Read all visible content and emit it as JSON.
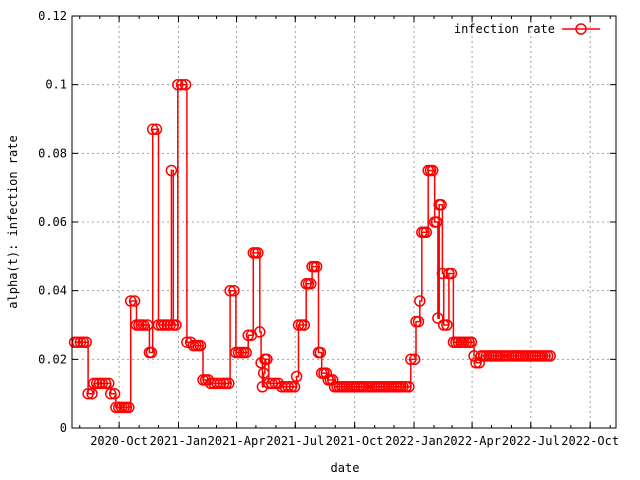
{
  "chart_data": {
    "type": "line",
    "title": "",
    "xlabel": "date",
    "ylabel": "alpha(t): infection rate",
    "ylim": [
      0,
      0.12
    ],
    "xlim": [
      "2020-07-20",
      "2022-11-10"
    ],
    "grid": true,
    "legend_position": "top-right",
    "x_ticks": [
      {
        "label": "2020-Oct",
        "date": "2020-10-01"
      },
      {
        "label": "2021-Jan",
        "date": "2021-01-01"
      },
      {
        "label": "2021-Apr",
        "date": "2021-04-01"
      },
      {
        "label": "2021-Jul",
        "date": "2021-07-01"
      },
      {
        "label": "2021-Oct",
        "date": "2021-10-01"
      },
      {
        "label": "2022-Jan",
        "date": "2022-01-01"
      },
      {
        "label": "2022-Apr",
        "date": "2022-04-01"
      },
      {
        "label": "2022-Jul",
        "date": "2022-07-01"
      },
      {
        "label": "2022-Oct",
        "date": "2022-10-01"
      }
    ],
    "y_ticks": [
      {
        "label": "0",
        "value": 0
      },
      {
        "label": "0.02",
        "value": 0.02
      },
      {
        "label": "0.04",
        "value": 0.04
      },
      {
        "label": "0.06",
        "value": 0.06
      },
      {
        "label": "0.08",
        "value": 0.08
      },
      {
        "label": "0.1",
        "value": 0.1
      },
      {
        "label": "0.12",
        "value": 0.12
      }
    ],
    "series": [
      {
        "name": "infection rate",
        "color": "#ff0000",
        "marker": "circle",
        "points": [
          [
            "2020-07-24",
            0.025
          ],
          [
            "2020-08-02",
            0.025
          ],
          [
            "2020-08-11",
            0.025
          ],
          [
            "2020-08-14",
            0.01
          ],
          [
            "2020-08-20",
            0.01
          ],
          [
            "2020-08-23",
            0.013
          ],
          [
            "2020-09-05",
            0.013
          ],
          [
            "2020-09-15",
            0.013
          ],
          [
            "2020-09-18",
            0.01
          ],
          [
            "2020-09-24",
            0.01
          ],
          [
            "2020-09-26",
            0.006
          ],
          [
            "2020-10-05",
            0.006
          ],
          [
            "2020-10-16",
            0.006
          ],
          [
            "2020-10-19",
            0.037
          ],
          [
            "2020-10-25",
            0.037
          ],
          [
            "2020-10-28",
            0.03
          ],
          [
            "2020-11-08",
            0.03
          ],
          [
            "2020-11-14",
            0.03
          ],
          [
            "2020-11-17",
            0.022
          ],
          [
            "2020-11-20",
            0.022
          ],
          [
            "2020-11-22",
            0.087
          ],
          [
            "2020-11-28",
            0.087
          ],
          [
            "2020-12-01",
            0.03
          ],
          [
            "2020-12-10",
            0.03
          ],
          [
            "2020-12-19",
            0.03
          ],
          [
            "2020-12-21",
            0.075
          ],
          [
            "2020-12-24",
            0.03
          ],
          [
            "2020-12-28",
            0.03
          ],
          [
            "2020-12-31",
            0.1
          ],
          [
            "2021-01-06",
            0.1
          ],
          [
            "2021-01-12",
            0.1
          ],
          [
            "2021-01-14",
            0.025
          ],
          [
            "2021-01-20",
            0.025
          ],
          [
            "2021-01-24",
            0.024
          ],
          [
            "2021-02-04",
            0.024
          ],
          [
            "2021-02-08",
            0.014
          ],
          [
            "2021-02-16",
            0.014
          ],
          [
            "2021-02-20",
            0.013
          ],
          [
            "2021-03-02",
            0.013
          ],
          [
            "2021-03-12",
            0.013
          ],
          [
            "2021-03-20",
            0.013
          ],
          [
            "2021-03-22",
            0.04
          ],
          [
            "2021-03-28",
            0.04
          ],
          [
            "2021-03-31",
            0.022
          ],
          [
            "2021-04-08",
            0.022
          ],
          [
            "2021-04-16",
            0.022
          ],
          [
            "2021-04-19",
            0.027
          ],
          [
            "2021-04-24",
            0.027
          ],
          [
            "2021-04-27",
            0.051
          ],
          [
            "2021-05-04",
            0.051
          ],
          [
            "2021-05-07",
            0.028
          ],
          [
            "2021-05-09",
            0.019
          ],
          [
            "2021-05-11",
            0.012
          ],
          [
            "2021-05-13",
            0.016
          ],
          [
            "2021-05-15",
            0.02
          ],
          [
            "2021-05-18",
            0.02
          ],
          [
            "2021-05-21",
            0.013
          ],
          [
            "2021-05-31",
            0.013
          ],
          [
            "2021-06-10",
            0.012
          ],
          [
            "2021-06-20",
            0.012
          ],
          [
            "2021-06-30",
            0.012
          ],
          [
            "2021-07-03",
            0.015
          ],
          [
            "2021-07-06",
            0.03
          ],
          [
            "2021-07-15",
            0.03
          ],
          [
            "2021-07-18",
            0.042
          ],
          [
            "2021-07-25",
            0.042
          ],
          [
            "2021-07-27",
            0.047
          ],
          [
            "2021-08-03",
            0.047
          ],
          [
            "2021-08-06",
            0.022
          ],
          [
            "2021-08-09",
            0.022
          ],
          [
            "2021-08-11",
            0.016
          ],
          [
            "2021-08-18",
            0.016
          ],
          [
            "2021-08-21",
            0.014
          ],
          [
            "2021-08-28",
            0.014
          ],
          [
            "2021-08-31",
            0.012
          ],
          [
            "2021-09-15",
            0.012
          ],
          [
            "2021-10-01",
            0.012
          ],
          [
            "2021-10-15",
            0.012
          ],
          [
            "2021-11-01",
            0.012
          ],
          [
            "2021-11-15",
            0.012
          ],
          [
            "2021-12-01",
            0.012
          ],
          [
            "2021-12-15",
            0.012
          ],
          [
            "2021-12-24",
            0.012
          ],
          [
            "2021-12-27",
            0.02
          ],
          [
            "2022-01-02",
            0.02
          ],
          [
            "2022-01-04",
            0.031
          ],
          [
            "2022-01-08",
            0.031
          ],
          [
            "2022-01-10",
            0.037
          ],
          [
            "2022-01-13",
            0.057
          ],
          [
            "2022-01-20",
            0.057
          ],
          [
            "2022-01-23",
            0.075
          ],
          [
            "2022-01-30",
            0.075
          ],
          [
            "2022-02-02",
            0.06
          ],
          [
            "2022-02-05",
            0.06
          ],
          [
            "2022-02-07",
            0.032
          ],
          [
            "2022-02-09",
            0.065
          ],
          [
            "2022-02-12",
            0.065
          ],
          [
            "2022-02-14",
            0.045
          ],
          [
            "2022-02-16",
            0.03
          ],
          [
            "2022-02-21",
            0.03
          ],
          [
            "2022-02-24",
            0.045
          ],
          [
            "2022-02-28",
            0.045
          ],
          [
            "2022-03-03",
            0.025
          ],
          [
            "2022-03-15",
            0.025
          ],
          [
            "2022-03-31",
            0.025
          ],
          [
            "2022-04-04",
            0.021
          ],
          [
            "2022-04-07",
            0.019
          ],
          [
            "2022-04-12",
            0.019
          ],
          [
            "2022-04-15",
            0.021
          ],
          [
            "2022-05-01",
            0.021
          ],
          [
            "2022-05-15",
            0.021
          ],
          [
            "2022-06-01",
            0.021
          ],
          [
            "2022-06-15",
            0.021
          ],
          [
            "2022-07-01",
            0.021
          ],
          [
            "2022-07-15",
            0.021
          ],
          [
            "2022-07-31",
            0.021
          ]
        ]
      }
    ]
  }
}
